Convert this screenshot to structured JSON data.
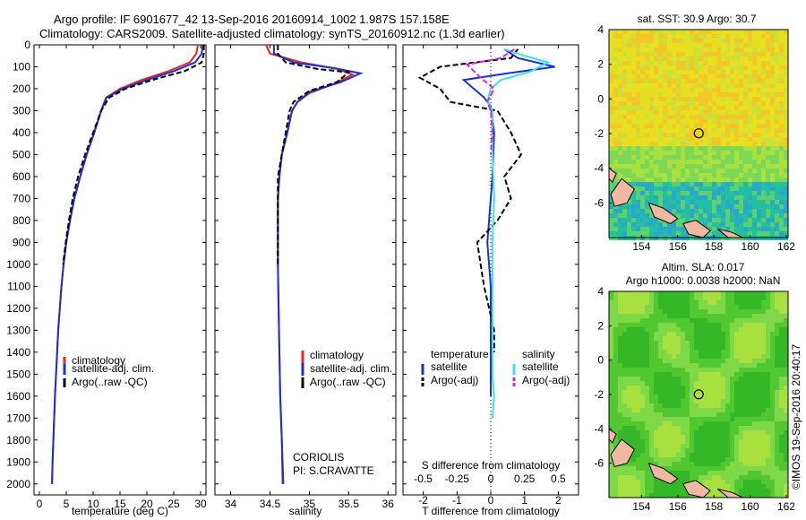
{
  "header": {
    "line1": "Argo profile: IF 6901677_42 13-Sep-2016 20160914_1002 1.987S 157.158E",
    "line2": "Climatology: CARS2009. Satellite-adjusted climatology: synTS_20160912.nc (1.3d earlier)"
  },
  "colors": {
    "clim": "#e8261c",
    "sat": "#1a2fd6",
    "argo": "#000000",
    "sal_sat": "#3ee0e8",
    "sal_argo": "#e020e0"
  },
  "chart_data": [
    {
      "type": "line",
      "id": "temperature",
      "xlabel": "temperature (deg C)",
      "xlim": [
        -1,
        31
      ],
      "ylim": [
        0,
        2050
      ],
      "yticks": [
        0,
        100,
        200,
        300,
        400,
        500,
        600,
        700,
        800,
        900,
        1000,
        1100,
        1200,
        1300,
        1400,
        1500,
        1600,
        1700,
        1800,
        1900,
        2000
      ],
      "xticks": [
        0,
        5,
        10,
        15,
        20,
        25,
        30
      ],
      "legend": [
        "climatology",
        "satellite-adj. clim.",
        "Argo(..raw -QC)"
      ],
      "series": [
        {
          "name": "climatology",
          "color_key": "clim",
          "dash": false,
          "points": [
            [
              29.5,
              0
            ],
            [
              29.2,
              40
            ],
            [
              28,
              80
            ],
            [
              24,
              120
            ],
            [
              19,
              160
            ],
            [
              15,
              200
            ],
            [
              12.4,
              240
            ],
            [
              11.5,
              300
            ],
            [
              10.2,
              400
            ],
            [
              8.8,
              500
            ],
            [
              7.6,
              600
            ],
            [
              6.5,
              700
            ],
            [
              5.7,
              800
            ],
            [
              5.0,
              900
            ],
            [
              4.5,
              1000
            ],
            [
              4.1,
              1100
            ],
            [
              3.8,
              1200
            ],
            [
              3.5,
              1300
            ],
            [
              3.3,
              1400
            ],
            [
              3.1,
              1500
            ],
            [
              2.9,
              1600
            ],
            [
              2.75,
              1700
            ],
            [
              2.6,
              1800
            ],
            [
              2.45,
              1900
            ],
            [
              2.35,
              2000
            ]
          ]
        },
        {
          "name": "satellite-adj. clim.",
          "color_key": "sat",
          "dash": false,
          "points": [
            [
              30.4,
              0
            ],
            [
              30.2,
              40
            ],
            [
              29,
              80
            ],
            [
              25,
              120
            ],
            [
              20,
              160
            ],
            [
              15.5,
              200
            ],
            [
              12.5,
              240
            ],
            [
              11.5,
              300
            ],
            [
              10.2,
              400
            ],
            [
              8.8,
              500
            ],
            [
              7.6,
              600
            ],
            [
              6.5,
              700
            ],
            [
              5.7,
              800
            ],
            [
              5.0,
              900
            ],
            [
              4.5,
              1000
            ],
            [
              4.1,
              1100
            ],
            [
              3.8,
              1200
            ],
            [
              3.5,
              1300
            ],
            [
              3.3,
              1400
            ],
            [
              3.1,
              1500
            ],
            [
              2.9,
              1600
            ],
            [
              2.75,
              1700
            ],
            [
              2.6,
              1800
            ],
            [
              2.45,
              1900
            ],
            [
              2.35,
              2000
            ]
          ]
        },
        {
          "name": "Argo(..raw -QC)",
          "color_key": "argo",
          "dash": true,
          "points": [
            [
              30.6,
              0
            ],
            [
              30.6,
              40
            ],
            [
              30.2,
              80
            ],
            [
              27,
              120
            ],
            [
              21,
              160
            ],
            [
              16,
              200
            ],
            [
              13,
              240
            ],
            [
              11.5,
              300
            ],
            [
              10,
              400
            ],
            [
              8.5,
              500
            ],
            [
              7.2,
              600
            ],
            [
              6.2,
              700
            ],
            [
              5.5,
              800
            ],
            [
              4.9,
              900
            ],
            [
              4.4,
              1000
            ]
          ]
        }
      ]
    },
    {
      "type": "line",
      "id": "salinity",
      "xlabel": "salinity",
      "xlim": [
        33.8,
        36.1
      ],
      "ylim": [
        0,
        2050
      ],
      "xticks": [
        34,
        34.5,
        35,
        35.5,
        36
      ],
      "legend": [
        "climatology",
        "satellite-adj. clim.",
        "Argo(..raw -QC)"
      ],
      "series": [
        {
          "name": "climatology",
          "color_key": "clim",
          "dash": false,
          "points": [
            [
              34.45,
              0
            ],
            [
              34.5,
              40
            ],
            [
              34.9,
              80
            ],
            [
              35.35,
              110
            ],
            [
              35.55,
              135
            ],
            [
              35.3,
              180
            ],
            [
              35.0,
              220
            ],
            [
              34.85,
              260
            ],
            [
              34.78,
              300
            ],
            [
              34.72,
              400
            ],
            [
              34.65,
              500
            ],
            [
              34.62,
              600
            ],
            [
              34.6,
              700
            ],
            [
              34.6,
              800
            ],
            [
              34.6,
              900
            ],
            [
              34.6,
              1000
            ],
            [
              34.61,
              1200
            ],
            [
              34.62,
              1400
            ],
            [
              34.63,
              1600
            ],
            [
              34.65,
              1800
            ],
            [
              34.66,
              2000
            ]
          ]
        },
        {
          "name": "satellite-adj. clim.",
          "color_key": "sat",
          "dash": false,
          "points": [
            [
              34.55,
              0
            ],
            [
              34.55,
              40
            ],
            [
              34.8,
              80
            ],
            [
              35.3,
              105
            ],
            [
              35.65,
              130
            ],
            [
              35.4,
              170
            ],
            [
              35.0,
              215
            ],
            [
              34.85,
              260
            ],
            [
              34.78,
              300
            ],
            [
              34.72,
              400
            ],
            [
              34.65,
              500
            ],
            [
              34.62,
              600
            ],
            [
              34.6,
              700
            ],
            [
              34.6,
              800
            ],
            [
              34.6,
              900
            ],
            [
              34.6,
              1000
            ],
            [
              34.61,
              1200
            ],
            [
              34.62,
              1400
            ],
            [
              34.63,
              1600
            ],
            [
              34.65,
              1800
            ],
            [
              34.67,
              2000
            ]
          ]
        },
        {
          "name": "Argo(..raw -QC)",
          "color_key": "argo",
          "dash": true,
          "points": [
            [
              34.6,
              0
            ],
            [
              34.6,
              40
            ],
            [
              34.7,
              80
            ],
            [
              35.1,
              110
            ],
            [
              35.5,
              125
            ],
            [
              35.35,
              170
            ],
            [
              35.0,
              210
            ],
            [
              34.8,
              260
            ],
            [
              34.75,
              300
            ],
            [
              34.7,
              400
            ],
            [
              34.65,
              500
            ],
            [
              34.6,
              600
            ],
            [
              34.6,
              700
            ],
            [
              34.6,
              800
            ],
            [
              34.6,
              900
            ],
            [
              34.6,
              1000
            ]
          ]
        }
      ],
      "note_line1": "CORIOLIS",
      "note_line2": "PI: S.CRAVATTE"
    },
    {
      "type": "line",
      "id": "difference",
      "xlabel": "T difference from climatology",
      "xlabel_top": "S difference from climatology",
      "xlim": [
        -2.6,
        2.6
      ],
      "ylim": [
        0,
        2050
      ],
      "t_ticks": [
        "-2",
        "-1",
        "0",
        "1",
        "2"
      ],
      "t_tick_values": [
        -2,
        -1,
        0,
        1,
        2
      ],
      "s_ticks": [
        "-0.5",
        "-0.25",
        "0",
        "0.25",
        "0.5"
      ],
      "s_tick_values": [
        -0.5,
        -0.25,
        0,
        0.25,
        0.5
      ],
      "legend_left_title": "temperature",
      "legend_right_title": "salinity",
      "legend": [
        "satellite",
        "Argo(-adj)",
        "satellite",
        "Argo(-adj)"
      ],
      "series": [
        {
          "name": "T satellite",
          "color_key": "sat",
          "dash": false,
          "points": [
            [
              0.4,
              20
            ],
            [
              0.8,
              60
            ],
            [
              1.9,
              100
            ],
            [
              0.5,
              130
            ],
            [
              -0.8,
              160
            ],
            [
              -0.5,
              200
            ],
            [
              -0.2,
              240
            ],
            [
              0,
              280
            ],
            [
              0.1,
              400
            ],
            [
              0.05,
              600
            ],
            [
              -0.05,
              800
            ],
            [
              -0.1,
              900
            ],
            [
              0,
              1100
            ],
            [
              0,
              1300
            ],
            [
              0,
              1500
            ],
            [
              0,
              1600
            ]
          ]
        },
        {
          "name": "T Argo(-adj)",
          "color_key": "argo",
          "dash": true,
          "points": [
            [
              0.8,
              20
            ],
            [
              0.6,
              60
            ],
            [
              -1.5,
              100
            ],
            [
              -2.1,
              150
            ],
            [
              -1.5,
              200
            ],
            [
              -1.2,
              260
            ],
            [
              0.2,
              300
            ],
            [
              0.6,
              400
            ],
            [
              0.9,
              500
            ],
            [
              0.4,
              600
            ],
            [
              0.6,
              700
            ],
            [
              0.2,
              800
            ],
            [
              -0.4,
              900
            ],
            [
              -0.2,
              1100
            ],
            [
              0.1,
              1300
            ],
            [
              0.1,
              1400
            ]
          ]
        },
        {
          "name": "S satellite",
          "color_key": "sal_sat",
          "dash": false,
          "points": [
            [
              0.4,
              20
            ],
            [
              1.0,
              50
            ],
            [
              1.7,
              80
            ],
            [
              1.2,
              120
            ],
            [
              0.3,
              160
            ],
            [
              0,
              200
            ],
            [
              -0.1,
              260
            ],
            [
              0.05,
              300
            ],
            [
              0.05,
              500
            ],
            [
              0.1,
              700
            ],
            [
              0.05,
              900
            ],
            [
              0.05,
              1100
            ],
            [
              0.05,
              1300
            ],
            [
              0.05,
              1500
            ],
            [
              0.1,
              1600
            ],
            [
              0.05,
              1700
            ]
          ]
        },
        {
          "name": "S Argo(-adj)",
          "color_key": "sal_argo",
          "dash": true,
          "points": [
            [
              0.7,
              20
            ],
            [
              0.3,
              60
            ],
            [
              -0.7,
              90
            ],
            [
              -0.3,
              150
            ],
            [
              0.1,
              200
            ],
            [
              -0.1,
              260
            ],
            [
              0,
              300
            ],
            [
              0.05,
              400
            ],
            [
              0,
              500
            ]
          ]
        }
      ]
    },
    {
      "type": "heatmap",
      "id": "sst-map",
      "title": "sat. SST: 30.9 Argo: 30.7",
      "xticks": [
        "154",
        "156",
        "158",
        "160",
        "162"
      ],
      "yticks": [
        "4",
        "2",
        "0",
        "-2",
        "-4",
        "-6"
      ],
      "xlim": [
        152.2,
        162.1
      ],
      "ylim": [
        -8,
        4
      ],
      "argo_lon": 157.158,
      "argo_lat": -1.987
    },
    {
      "type": "heatmap",
      "id": "sla-map",
      "title_line1": "Altim. SLA: 0.017",
      "title_line2": "Argo h1000: 0.0038 h2000: NaN",
      "xticks": [
        "154",
        "156",
        "158",
        "160",
        "162"
      ],
      "yticks": [
        "4",
        "2",
        "0",
        "-2",
        "-4",
        "-6"
      ],
      "xlim": [
        152.2,
        162.1
      ],
      "ylim": [
        -8,
        4
      ],
      "argo_lon": 157.158,
      "argo_lat": -1.987
    }
  ],
  "footer": {
    "credit": "©IMOS 19-Sep-2016 20:40:17"
  }
}
